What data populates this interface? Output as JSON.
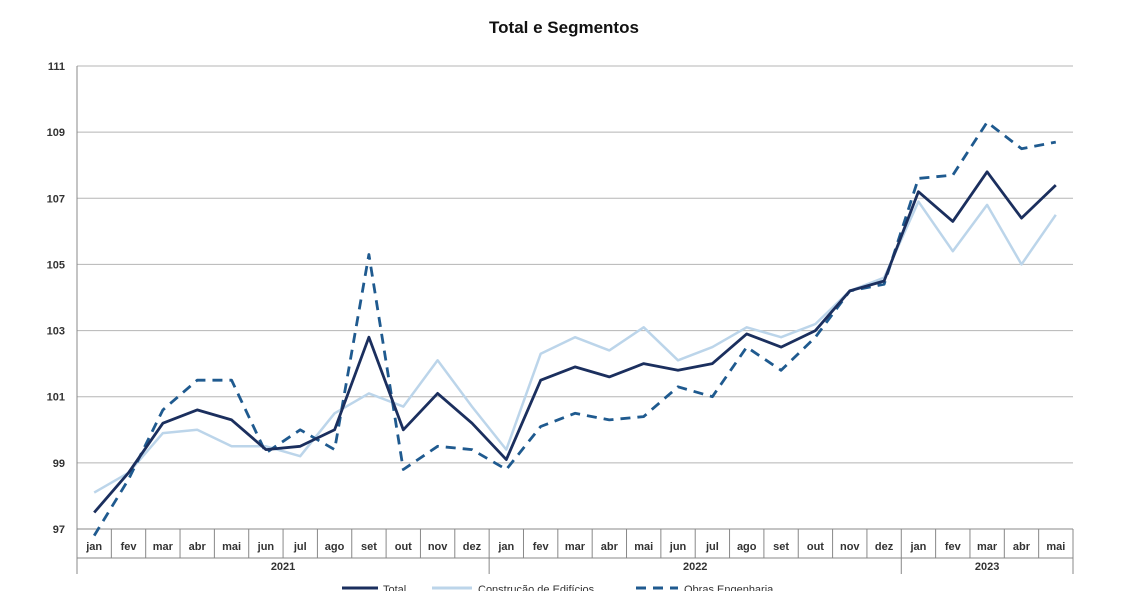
{
  "chart_data": {
    "type": "line",
    "title": "Total e Segmentos",
    "ylim": [
      97,
      111
    ],
    "yticks": [
      97,
      99,
      101,
      103,
      105,
      107,
      109,
      111
    ],
    "grid": true,
    "legend_position": "bottom",
    "months": [
      "jan",
      "fev",
      "mar",
      "abr",
      "mai",
      "jun",
      "jul",
      "ago",
      "set",
      "out",
      "nov",
      "dez",
      "jan",
      "fev",
      "mar",
      "abr",
      "mai",
      "jun",
      "jul",
      "ago",
      "set",
      "out",
      "nov",
      "dez",
      "jan",
      "fev",
      "mar",
      "abr",
      "mai"
    ],
    "years": [
      {
        "label": "2021",
        "count": 12
      },
      {
        "label": "2022",
        "count": 12
      },
      {
        "label": "2023",
        "count": 5
      }
    ],
    "series": [
      {
        "name": "Total",
        "color": "#1b2f5e",
        "style": "solid",
        "values": [
          97.5,
          98.7,
          100.2,
          100.6,
          100.3,
          99.4,
          99.5,
          100.0,
          102.8,
          100.0,
          101.1,
          100.2,
          99.1,
          101.5,
          101.9,
          101.6,
          102.0,
          101.8,
          102.0,
          102.9,
          102.5,
          103.0,
          104.2,
          104.5,
          107.2,
          106.3,
          107.8,
          106.4,
          107.4
        ]
      },
      {
        "name": "Construção de Edifícios",
        "color": "#bcd5ea",
        "style": "solid",
        "values": [
          98.1,
          98.7,
          99.9,
          100.0,
          99.5,
          99.5,
          99.2,
          100.5,
          101.1,
          100.7,
          102.1,
          100.7,
          99.4,
          102.3,
          102.8,
          102.4,
          103.1,
          102.1,
          102.5,
          103.1,
          102.8,
          103.2,
          104.2,
          104.6,
          106.9,
          105.4,
          106.8,
          105.0,
          106.5
        ]
      },
      {
        "name": "Obras Engenharia",
        "color": "#1f5a8f",
        "style": "dashed",
        "values": [
          96.8,
          98.5,
          100.6,
          101.5,
          101.5,
          99.3,
          100.0,
          99.4,
          105.3,
          98.8,
          99.5,
          99.4,
          98.8,
          100.1,
          100.5,
          100.3,
          100.4,
          101.3,
          101.0,
          102.5,
          101.8,
          102.8,
          104.2,
          104.4,
          107.6,
          107.7,
          109.3,
          108.5,
          108.7
        ]
      }
    ]
  }
}
